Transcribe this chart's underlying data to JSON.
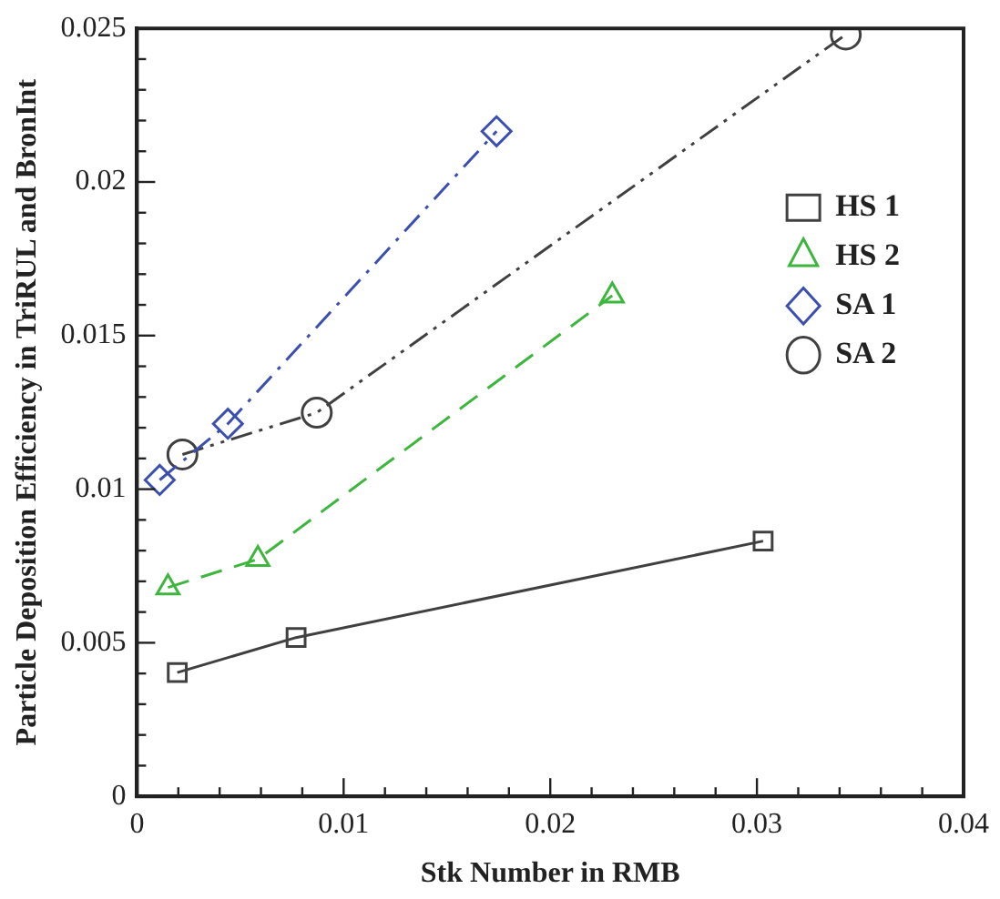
{
  "chart_data": {
    "type": "line",
    "xlabel": "Stk Number in RMB",
    "ylabel": "Particle Deposition Efficiency in TriRUL and BronInt",
    "xlim": [
      0,
      0.04
    ],
    "ylim": [
      0,
      0.025
    ],
    "xticks": [
      0,
      {
        "value": 0.002,
        "label": null
      },
      {
        "value": 0.004,
        "label": null
      },
      {
        "value": 0.006,
        "label": null
      },
      {
        "value": 0.008,
        "label": null
      },
      0.01,
      {
        "value": 0.012,
        "label": null
      },
      {
        "value": 0.014,
        "label": null
      },
      {
        "value": 0.016,
        "label": null
      },
      {
        "value": 0.018,
        "label": null
      },
      0.02,
      {
        "value": 0.022,
        "label": null
      },
      {
        "value": 0.024,
        "label": null
      },
      {
        "value": 0.026,
        "label": null
      },
      {
        "value": 0.028,
        "label": null
      },
      0.03,
      {
        "value": 0.032,
        "label": null
      },
      {
        "value": 0.034,
        "label": null
      },
      {
        "value": 0.036,
        "label": null
      },
      {
        "value": 0.038,
        "label": null
      },
      0.04
    ],
    "yticks": [
      0,
      {
        "value": 0.001,
        "label": null
      },
      {
        "value": 0.002,
        "label": null
      },
      {
        "value": 0.003,
        "label": null
      },
      {
        "value": 0.004,
        "label": null
      },
      0.005,
      {
        "value": 0.006,
        "label": null
      },
      {
        "value": 0.007,
        "label": null
      },
      {
        "value": 0.008,
        "label": null
      },
      {
        "value": 0.009,
        "label": null
      },
      0.01,
      {
        "value": 0.011,
        "label": null
      },
      {
        "value": 0.012,
        "label": null
      },
      {
        "value": 0.013,
        "label": null
      },
      {
        "value": 0.014,
        "label": null
      },
      0.015,
      {
        "value": 0.016,
        "label": null
      },
      {
        "value": 0.017,
        "label": null
      },
      {
        "value": 0.018,
        "label": null
      },
      {
        "value": 0.019,
        "label": null
      },
      0.02,
      {
        "value": 0.021,
        "label": null
      },
      {
        "value": 0.022,
        "label": null
      },
      {
        "value": 0.023,
        "label": null
      },
      {
        "value": 0.024,
        "label": null
      },
      0.025
    ],
    "grid": false,
    "legend": "top right",
    "series": [
      {
        "name": "HS 1",
        "color": "#404040",
        "marker": "square",
        "line_style": "solid",
        "x": [
          0.00195,
          0.0077,
          0.0303
        ],
        "values": [
          0.00403,
          0.00517,
          0.00831
        ]
      },
      {
        "name": "HS 2",
        "color": "#3cb63c",
        "marker": "triangle",
        "line_style": "dashed",
        "x": [
          0.0015,
          0.00585,
          0.023
        ],
        "values": [
          0.0068,
          0.00772,
          0.0163
        ]
      },
      {
        "name": "SA 1",
        "color": "#3a4fb0",
        "marker": "diamond",
        "line_style": "dashdot",
        "x": [
          0.0011,
          0.0044,
          0.0174
        ],
        "values": [
          0.0103,
          0.01213,
          0.02165
        ]
      },
      {
        "name": "SA 2",
        "color": "#404040",
        "marker": "circle",
        "line_style": "dashdotdot",
        "x": [
          0.0022,
          0.0087,
          0.0343
        ],
        "values": [
          0.01113,
          0.01249,
          0.0248
        ]
      }
    ]
  }
}
